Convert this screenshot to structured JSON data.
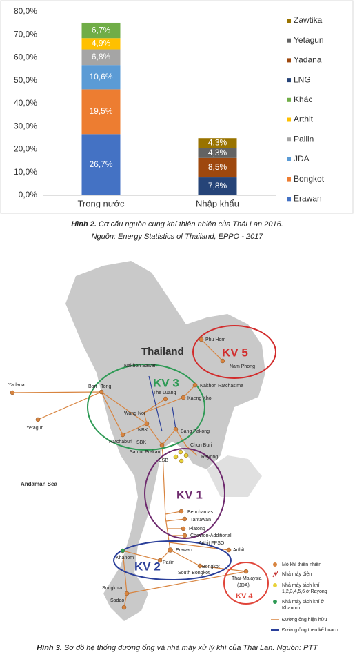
{
  "chart_data": {
    "type": "stacked_bar",
    "categories": [
      "Trong nước",
      "Nhập khẩu"
    ],
    "series": [
      {
        "name": "Erawan",
        "color": "#4472c4",
        "values": [
          26.7,
          null
        ],
        "value_labels": [
          "26,7%",
          null
        ]
      },
      {
        "name": "Bongkot",
        "color": "#ed7d31",
        "values": [
          19.5,
          null
        ],
        "value_labels": [
          "19,5%",
          null
        ]
      },
      {
        "name": "JDA",
        "color": "#5b9bd5",
        "values": [
          10.6,
          null
        ],
        "value_labels": [
          "10,6%",
          null
        ]
      },
      {
        "name": "Pailin",
        "color": "#a5a5a5",
        "values": [
          6.8,
          null
        ],
        "value_labels": [
          "6,8%",
          null
        ]
      },
      {
        "name": "Arthit",
        "color": "#ffc000",
        "values": [
          4.9,
          null
        ],
        "value_labels": [
          "4,9%",
          null
        ]
      },
      {
        "name": "Khác",
        "color": "#70ad47",
        "values": [
          6.7,
          null
        ],
        "value_labels": [
          "6,7%",
          null
        ]
      },
      {
        "name": "LNG",
        "color": "#264478",
        "values": [
          null,
          7.8
        ],
        "value_labels": [
          null,
          "7,8%"
        ]
      },
      {
        "name": "Yadana",
        "color": "#9e480e",
        "values": [
          null,
          8.5
        ],
        "value_labels": [
          null,
          "8,5%"
        ]
      },
      {
        "name": "Yetagun",
        "color": "#636363",
        "values": [
          null,
          4.3
        ],
        "value_labels": [
          null,
          "4,3%"
        ]
      },
      {
        "name": "Zawtika",
        "color": "#997300",
        "values": [
          null,
          4.3
        ],
        "value_labels": [
          null,
          "4,3%"
        ]
      }
    ],
    "ylim": [
      0,
      80
    ],
    "yticks": [
      {
        "value": 0,
        "label": "0,0%"
      },
      {
        "value": 10,
        "label": "10,0%"
      },
      {
        "value": 20,
        "label": "20,0%"
      },
      {
        "value": 30,
        "label": "30,0%"
      },
      {
        "value": 40,
        "label": "40,0%"
      },
      {
        "value": 50,
        "label": "50,0%"
      },
      {
        "value": 60,
        "label": "60,0%"
      },
      {
        "value": 70,
        "label": "70,0%"
      },
      {
        "value": 80,
        "label": "80,0%"
      }
    ],
    "grid": false,
    "legend": "right"
  },
  "figure2": {
    "label": "Hình 2.",
    "caption": "Cơ cấu nguồn cung khí thiên nhiên của Thái Lan 2016.",
    "source": "Nguồn: Energy Statistics of Thailand, EPPO - 2017"
  },
  "map": {
    "title": "Thailand",
    "sea": "Andaman Sea",
    "regions": [
      "KV 1",
      "KV 2",
      "KV 3",
      "KV 4",
      "KV 5"
    ],
    "nodes": [
      "Phu Hom",
      "Nam Phong",
      "Yadana",
      "Yetagun",
      "Ban I Tong",
      "Nakhon Sawan",
      "The Luang",
      "Nakhon Ratchasima",
      "Kaeng Khoi",
      "Wang Noi",
      "NBK",
      "SBK",
      "Ratchaburi",
      "Bang Pakong",
      "Chon Buri",
      "Samut Prakan",
      "ESB",
      "Rayong",
      "Benchamas",
      "Tantawan",
      "Platong",
      "Chevron-Additional",
      "Arthit FPSO",
      "Arthit",
      "Erawan",
      "Pailin",
      "Khanom",
      "Bongkot",
      "South Bongkot",
      "Thai-Malaysia",
      "(JDA)",
      "Songkhla",
      "Sadao"
    ],
    "legend": [
      "Mỏ khí thiên nhiên",
      "Nhà máy điện",
      "Nhà máy tách khí",
      "1,2,3,4,5,6 ở Rayong",
      "Nhà máy tách khí ở",
      "Khanom",
      "Đường ống hiện hữu",
      "Đường ống theo kế hoạch"
    ]
  },
  "figure3": {
    "label": "Hình 3.",
    "caption": "Sơ đồ hệ thống đường ống và nhà máy xử lý khí của Thái Lan. Nguồn: PTT"
  }
}
